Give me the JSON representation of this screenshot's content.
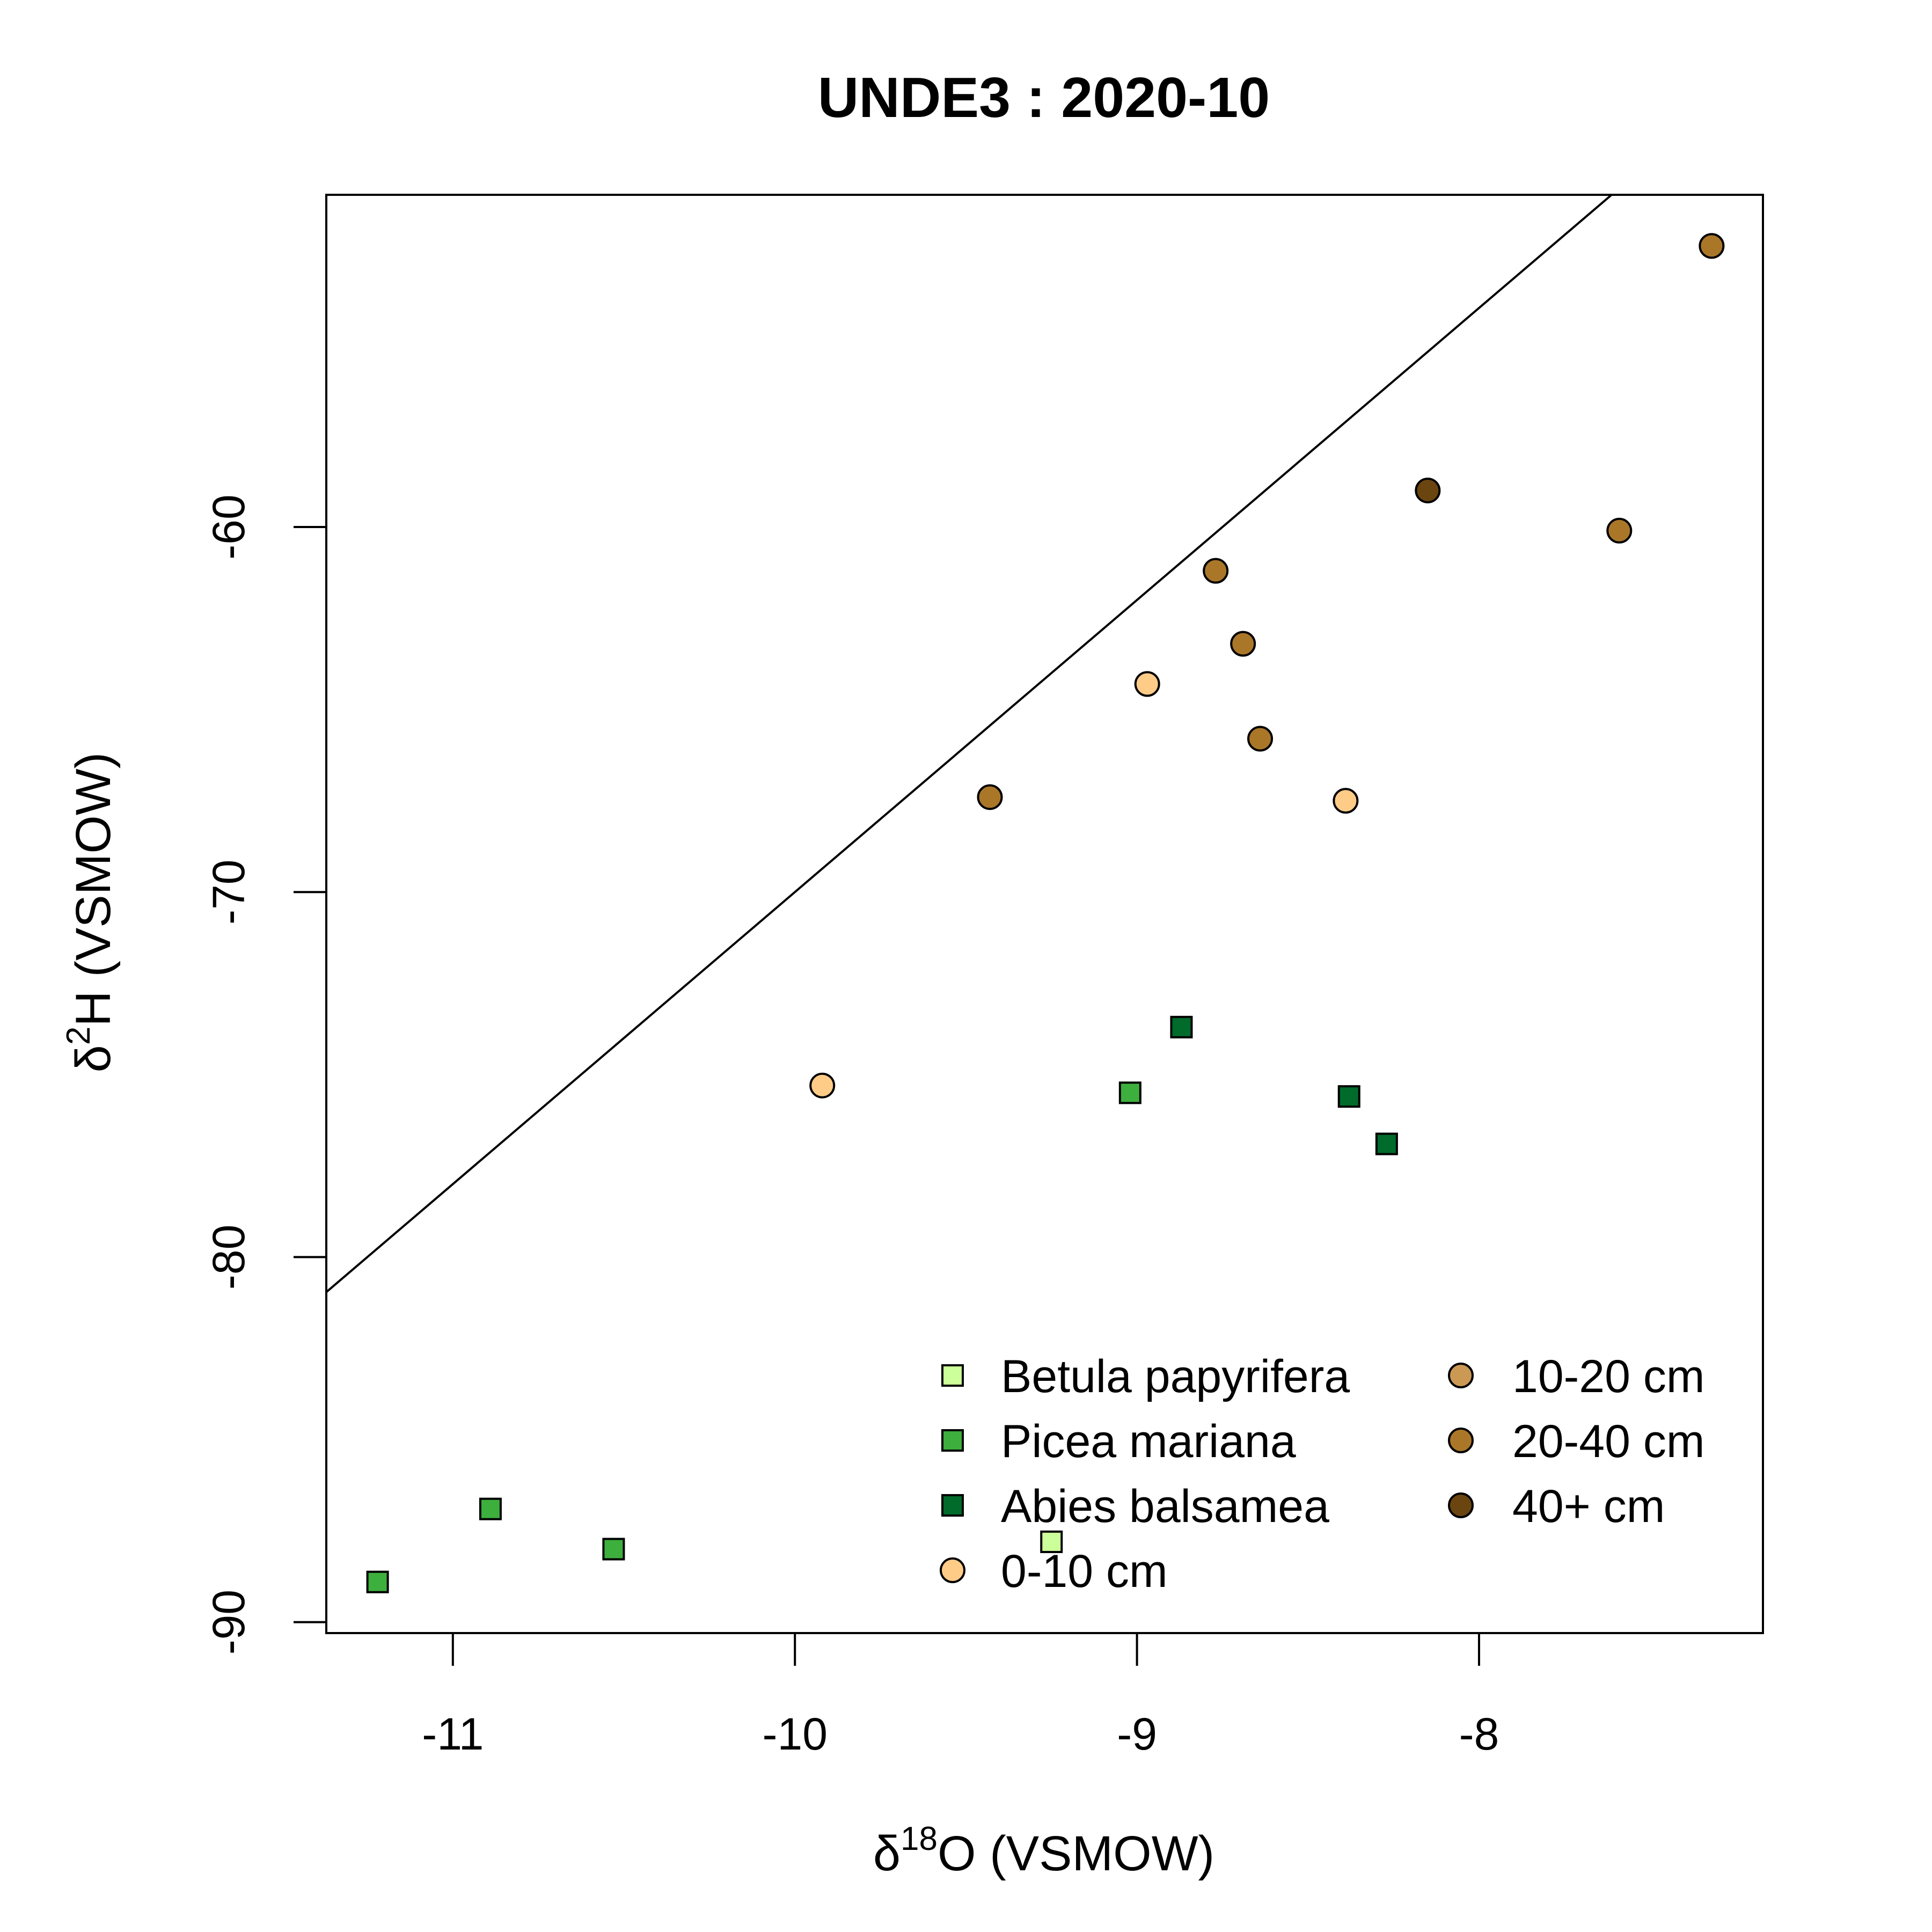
{
  "chart_data": {
    "type": "scatter",
    "title": "UNDE3 : 2020-10",
    "xlabel": {
      "prefix": "δ",
      "sup": "18",
      "suffix": "O (VSMOW)"
    },
    "ylabel": {
      "prefix": "δ",
      "sup": "2",
      "suffix": "H (VSMOW)"
    },
    "xlim": [
      -11.37,
      -7.17
    ],
    "ylim": [
      -90.3,
      -50.9
    ],
    "xticks": [
      -11,
      -10,
      -9,
      -8
    ],
    "yticks": [
      -90,
      -80,
      -70,
      -60
    ],
    "reference_line": {
      "slope": 8,
      "intercept": 10
    },
    "legend": {
      "position": "bottom-right",
      "columns": 2
    },
    "series": [
      {
        "name": "Betula papyrifera",
        "marker": "square",
        "color": "#ccff99",
        "points": [
          [
            -9.25,
            -87.8
          ]
        ]
      },
      {
        "name": "Picea mariana",
        "marker": "square",
        "color": "#3daf3d",
        "points": [
          [
            -11.22,
            -88.9
          ],
          [
            -10.89,
            -86.9
          ],
          [
            -10.53,
            -88.0
          ],
          [
            -9.02,
            -75.5
          ]
        ]
      },
      {
        "name": "Abies balsamea",
        "marker": "square",
        "color": "#006b2a",
        "points": [
          [
            -8.87,
            -73.7
          ],
          [
            -8.38,
            -75.6
          ],
          [
            -8.27,
            -76.9
          ]
        ]
      },
      {
        "name": "0-10 cm",
        "marker": "circle",
        "color": "#ffcc88",
        "points": [
          [
            -9.92,
            -75.3
          ],
          [
            -8.97,
            -64.3
          ],
          [
            -8.39,
            -67.5
          ]
        ]
      },
      {
        "name": "10-20 cm",
        "marker": "circle",
        "color": "#cc9955",
        "points": []
      },
      {
        "name": "20-40 cm",
        "marker": "circle",
        "color": "#aa7729",
        "points": [
          [
            -9.43,
            -67.4
          ],
          [
            -8.77,
            -61.2
          ],
          [
            -8.69,
            -63.2
          ],
          [
            -8.64,
            -65.8
          ],
          [
            -7.59,
            -60.1
          ],
          [
            -7.32,
            -52.3
          ]
        ]
      },
      {
        "name": "40+ cm",
        "marker": "circle",
        "color": "#6b4510",
        "points": [
          [
            -8.15,
            -59.0
          ]
        ]
      }
    ]
  }
}
